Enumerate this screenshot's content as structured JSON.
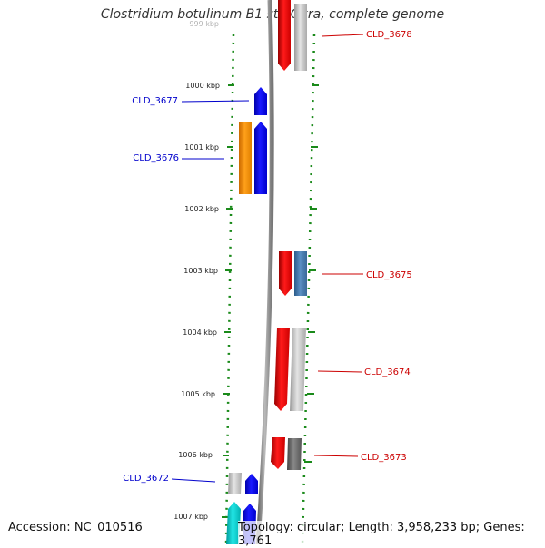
{
  "title": "Clostridium botulinum B1 str. Okra, complete genome",
  "footer": {
    "accession": "Accession: NC_010516",
    "topology": "Topology: circular; Length: 3,958,233 bp; Genes: 3,761"
  },
  "colors": {
    "backbone": "#888888",
    "tick": "#1a8a1a",
    "forward_label": "#0000cc",
    "reverse_label": "#cc0000"
  },
  "ticks": [
    {
      "label": "999 kbp",
      "faded": true
    },
    {
      "label": "1000 kbp"
    },
    {
      "label": "1001 kbp"
    },
    {
      "label": "1002 kbp"
    },
    {
      "label": "1003 kbp"
    },
    {
      "label": "1004 kbp"
    },
    {
      "label": "1005 kbp"
    },
    {
      "label": "1006 kbp"
    },
    {
      "label": "1007 kbp"
    }
  ],
  "genes": [
    {
      "label": "CLD_3678",
      "strand": "reverse"
    },
    {
      "label": "CLD_3677",
      "strand": "forward"
    },
    {
      "label": "CLD_3676",
      "strand": "forward"
    },
    {
      "label": "CLD_3675",
      "strand": "reverse"
    },
    {
      "label": "CLD_3674",
      "strand": "reverse"
    },
    {
      "label": "CLD_3673",
      "strand": "reverse"
    },
    {
      "label": "CLD_3672",
      "strand": "forward"
    }
  ]
}
